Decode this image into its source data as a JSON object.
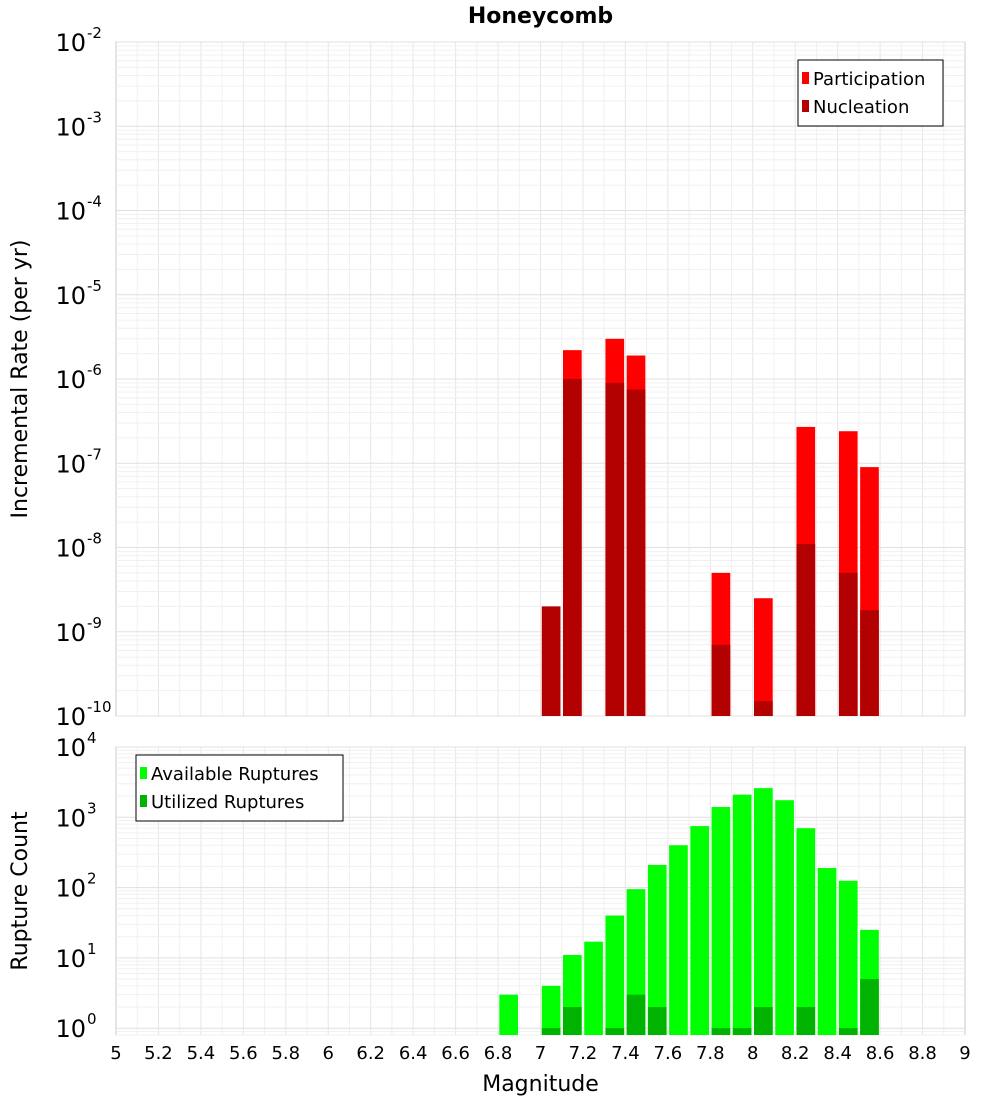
{
  "chart_data": [
    {
      "type": "bar",
      "title": "Honeycomb",
      "xlabel": "",
      "ylabel": "Incremental Rate (per yr)",
      "yscale": "log",
      "ylim": [
        1e-10,
        0.01
      ],
      "xlim": [
        5,
        9
      ],
      "y_tick_exponents": [
        -10,
        -9,
        -8,
        -7,
        -6,
        -5,
        -4,
        -3,
        -2
      ],
      "legend": {
        "position": "top-right"
      },
      "series": [
        {
          "name": "Participation",
          "color": "#ff0000",
          "x": [
            7.15,
            7.35,
            7.45,
            7.85,
            8.05,
            8.25,
            8.45,
            8.55
          ],
          "values": [
            2.2e-06,
            3e-06,
            1.9e-06,
            5e-09,
            2.5e-09,
            2.7e-07,
            2.4e-07,
            9e-08
          ]
        },
        {
          "name": "Nucleation",
          "color": "#b30000",
          "x": [
            7.05,
            7.15,
            7.35,
            7.45,
            7.85,
            8.05,
            8.25,
            8.45,
            8.55
          ],
          "values": [
            2e-09,
            1e-06,
            9e-07,
            7.5e-07,
            7e-10,
            1.5e-10,
            1.1e-08,
            5e-09,
            1.8e-09
          ]
        }
      ]
    },
    {
      "type": "bar",
      "title": "",
      "xlabel": "Magnitude",
      "ylabel": "Rupture Count",
      "yscale": "log",
      "ylim": [
        0.8,
        10000
      ],
      "xlim": [
        5,
        9
      ],
      "y_tick_exponents": [
        0,
        1,
        2,
        3,
        4
      ],
      "x_ticks": [
        "5",
        "5.2",
        "5.4",
        "5.6",
        "5.8",
        "6",
        "6.2",
        "6.4",
        "6.6",
        "6.8",
        "7",
        "7.2",
        "7.4",
        "7.6",
        "7.8",
        "8",
        "8.2",
        "8.4",
        "8.6",
        "8.8",
        "9"
      ],
      "legend": {
        "position": "top-left"
      },
      "series": [
        {
          "name": "Available Ruptures",
          "color": "#00ff00",
          "x": [
            6.85,
            7.05,
            7.15,
            7.25,
            7.35,
            7.45,
            7.55,
            7.65,
            7.75,
            7.85,
            7.95,
            8.05,
            8.15,
            8.25,
            8.35,
            8.45,
            8.55
          ],
          "values": [
            3,
            4,
            11,
            17,
            40,
            95,
            210,
            400,
            750,
            1400,
            2100,
            2600,
            1750,
            700,
            190,
            125,
            25
          ]
        },
        {
          "name": "Utilized Ruptures",
          "color": "#00b300",
          "x": [
            7.05,
            7.15,
            7.35,
            7.45,
            7.55,
            7.85,
            7.95,
            8.05,
            8.25,
            8.45,
            8.55
          ],
          "values": [
            1,
            2,
            1,
            3,
            2,
            1,
            1,
            2,
            2,
            1,
            5
          ]
        }
      ]
    }
  ]
}
